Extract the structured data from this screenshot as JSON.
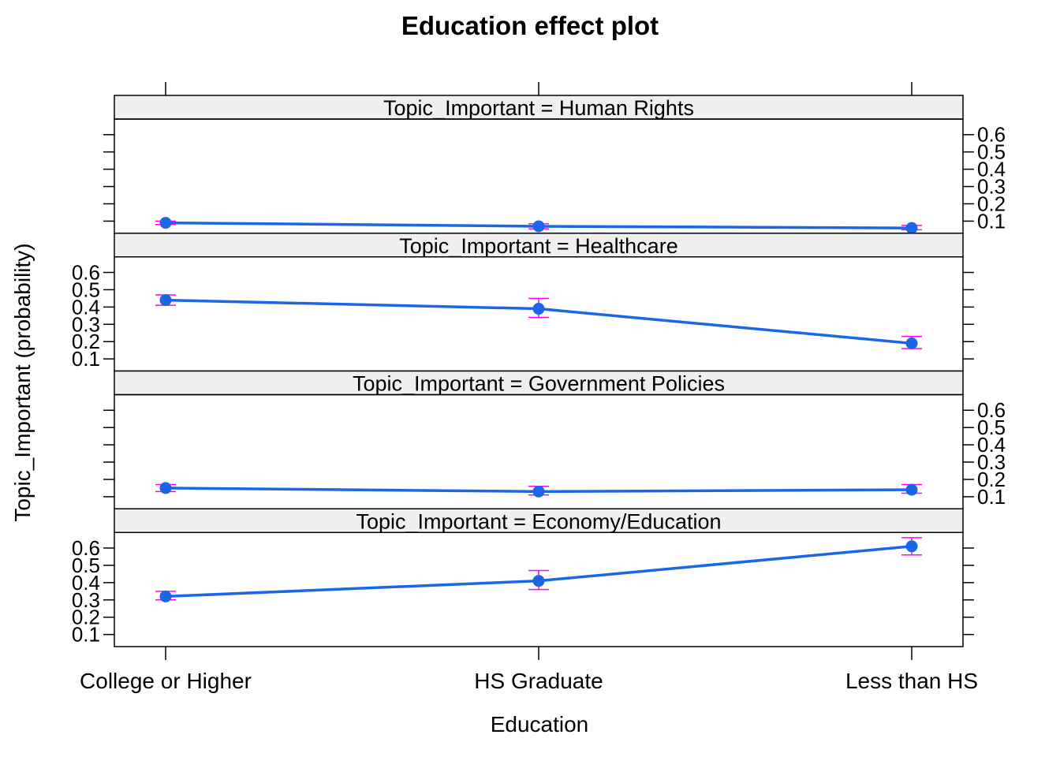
{
  "chart_data": {
    "type": "line",
    "title": "Education effect plot",
    "xlabel": "Education",
    "ylabel": "Topic_Important (probability)",
    "categories": [
      "College or Higher",
      "HS Graduate",
      "Less than HS"
    ],
    "yticks": [
      "0.1",
      "0.2",
      "0.3",
      "0.4",
      "0.5",
      "0.6"
    ],
    "ylim": [
      0.03,
      0.69
    ],
    "grid": false,
    "panels": [
      {
        "strip": "Topic_Important = Human Rights",
        "values": [
          0.09,
          0.07,
          0.06
        ],
        "lower": [
          0.08,
          0.055,
          0.05
        ],
        "upper": [
          0.1,
          0.085,
          0.075
        ],
        "yaxis_labels": "right"
      },
      {
        "strip": "Topic_Important = Healthcare",
        "values": [
          0.44,
          0.39,
          0.19
        ],
        "lower": [
          0.41,
          0.34,
          0.16
        ],
        "upper": [
          0.47,
          0.45,
          0.23
        ],
        "yaxis_labels": "left"
      },
      {
        "strip": "Topic_Important = Government Policies",
        "values": [
          0.15,
          0.13,
          0.14
        ],
        "lower": [
          0.13,
          0.11,
          0.12
        ],
        "upper": [
          0.17,
          0.16,
          0.17
        ],
        "yaxis_labels": "right"
      },
      {
        "strip": "Topic_Important = Economy/Education",
        "values": [
          0.32,
          0.41,
          0.61
        ],
        "lower": [
          0.3,
          0.36,
          0.56
        ],
        "upper": [
          0.35,
          0.47,
          0.66
        ],
        "yaxis_labels": "left"
      }
    ],
    "colors": {
      "line": "#1a66e6",
      "point": "#1a66e6",
      "errorbar": "#ff00ff",
      "strip": "#efefef",
      "axis": "#000000"
    }
  }
}
